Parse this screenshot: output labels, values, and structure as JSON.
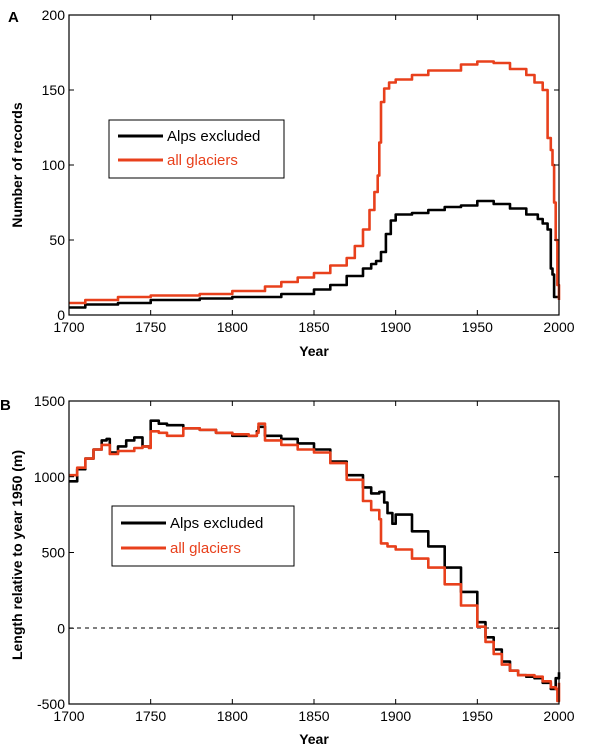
{
  "chart_data": [
    {
      "panel_label": "A",
      "type": "line",
      "xlabel": "Year",
      "ylabel": "Number of records",
      "xlim": [
        1700,
        2000
      ],
      "ylim": [
        0,
        200
      ],
      "xticks": [
        "1700",
        "1750",
        "1800",
        "1850",
        "1900",
        "1950",
        "2000"
      ],
      "yticks": [
        "0",
        "50",
        "100",
        "150",
        "200"
      ],
      "legend": {
        "placement": "left-middle",
        "entries": [
          "Alps excluded",
          "all glaciers"
        ]
      },
      "series": [
        {
          "name": "Alps excluded",
          "color": "#000000",
          "x": [
            1700,
            1710,
            1730,
            1750,
            1780,
            1800,
            1830,
            1850,
            1860,
            1870,
            1880,
            1885,
            1888,
            1891,
            1894,
            1897,
            1900,
            1910,
            1920,
            1930,
            1940,
            1950,
            1960,
            1970,
            1980,
            1987,
            1990,
            1993,
            1995,
            1996,
            1997,
            1999,
            2000
          ],
          "y": [
            5,
            7,
            8,
            10,
            11,
            12,
            14,
            17,
            20,
            26,
            31,
            34,
            36,
            42,
            54,
            63,
            67,
            68,
            70,
            72,
            73,
            76,
            74,
            71,
            67,
            64,
            61,
            57,
            31,
            27,
            12,
            12,
            12
          ]
        },
        {
          "name": "all glaciers",
          "color": "#e8401c",
          "x": [
            1700,
            1710,
            1730,
            1750,
            1780,
            1800,
            1820,
            1830,
            1840,
            1850,
            1860,
            1870,
            1875,
            1880,
            1884,
            1887,
            1889,
            1890,
            1891,
            1893,
            1896,
            1900,
            1910,
            1920,
            1930,
            1940,
            1950,
            1960,
            1970,
            1980,
            1985,
            1990,
            1993,
            1995,
            1996,
            1997,
            1998,
            1999,
            2000
          ],
          "y": [
            8,
            10,
            12,
            13,
            14,
            16,
            19,
            22,
            25,
            28,
            33,
            38,
            46,
            57,
            70,
            82,
            93,
            115,
            142,
            151,
            155,
            157,
            160,
            163,
            163,
            167,
            169,
            168,
            164,
            160,
            155,
            150,
            118,
            110,
            100,
            75,
            50,
            20,
            10
          ]
        }
      ]
    },
    {
      "panel_label": "B",
      "type": "line",
      "xlabel": "Year",
      "ylabel": "Length relative to year 1950 (m)",
      "xlim": [
        1700,
        2000
      ],
      "ylim": [
        -500,
        1500
      ],
      "xticks": [
        "1700",
        "1750",
        "1800",
        "1850",
        "1900",
        "1950",
        "2000"
      ],
      "yticks": [
        "-500",
        "0",
        "500",
        "1000",
        "1500"
      ],
      "reference_line": {
        "y": 0,
        "style": "dashed"
      },
      "legend": {
        "placement": "left-middle",
        "entries": [
          "Alps excluded",
          "all glaciers"
        ]
      },
      "series": [
        {
          "name": "Alps excluded",
          "color": "#000000",
          "x": [
            1700,
            1705,
            1710,
            1715,
            1720,
            1723,
            1725,
            1730,
            1735,
            1740,
            1745,
            1749,
            1750,
            1755,
            1760,
            1770,
            1780,
            1790,
            1800,
            1810,
            1815,
            1816,
            1820,
            1830,
            1840,
            1850,
            1860,
            1870,
            1880,
            1885,
            1890,
            1893,
            1895,
            1898,
            1900,
            1910,
            1920,
            1930,
            1940,
            1950,
            1955,
            1960,
            1965,
            1970,
            1975,
            1980,
            1985,
            1990,
            1995,
            1998,
            2000
          ],
          "y": [
            970,
            1050,
            1120,
            1180,
            1240,
            1250,
            1160,
            1200,
            1240,
            1260,
            1200,
            1200,
            1370,
            1350,
            1340,
            1320,
            1310,
            1290,
            1270,
            1270,
            1300,
            1330,
            1270,
            1250,
            1220,
            1180,
            1100,
            1010,
            930,
            890,
            900,
            830,
            760,
            690,
            750,
            640,
            540,
            400,
            240,
            40,
            -60,
            -140,
            -220,
            -280,
            -310,
            -320,
            -330,
            -360,
            -400,
            -330,
            -290
          ]
        },
        {
          "name": "all glaciers",
          "color": "#e8401c",
          "x": [
            1700,
            1705,
            1710,
            1715,
            1720,
            1725,
            1730,
            1740,
            1745,
            1749,
            1750,
            1755,
            1760,
            1770,
            1780,
            1790,
            1800,
            1810,
            1815,
            1816,
            1820,
            1830,
            1840,
            1850,
            1860,
            1870,
            1880,
            1885,
            1890,
            1891,
            1895,
            1900,
            1910,
            1920,
            1930,
            1940,
            1950,
            1955,
            1960,
            1965,
            1970,
            1975,
            1980,
            1985,
            1990,
            1995,
            1998,
            1999,
            2000
          ],
          "y": [
            1010,
            1060,
            1120,
            1180,
            1210,
            1150,
            1170,
            1190,
            1200,
            1190,
            1300,
            1290,
            1270,
            1320,
            1310,
            1290,
            1280,
            1270,
            1290,
            1350,
            1240,
            1210,
            1180,
            1160,
            1090,
            980,
            840,
            780,
            720,
            560,
            540,
            520,
            460,
            400,
            290,
            150,
            10,
            -90,
            -170,
            -240,
            -280,
            -310,
            -310,
            -320,
            -350,
            -390,
            -400,
            -480,
            -360
          ]
        }
      ]
    }
  ]
}
